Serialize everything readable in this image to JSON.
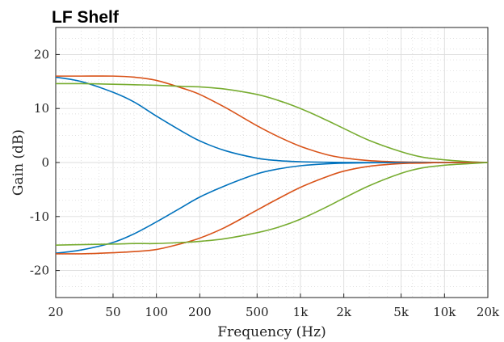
{
  "chart_data": {
    "type": "line",
    "title": "LF Shelf",
    "xlabel": "Frequency (Hz)",
    "ylabel": "Gain (dB)",
    "x_scale": "log",
    "xlim": [
      20,
      20000
    ],
    "ylim": [
      -25,
      25
    ],
    "grid": true,
    "minor_grid": true,
    "legend": "none",
    "x_ticks": [
      20,
      50,
      100,
      200,
      500,
      1000,
      2000,
      5000,
      10000,
      20000
    ],
    "x_tick_labels": [
      "20",
      "50",
      "100",
      "200",
      "500",
      "1k",
      "2k",
      "5k",
      "10k",
      "20k"
    ],
    "y_ticks": [
      -20,
      -10,
      0,
      10,
      20
    ],
    "y_tick_labels": [
      "-20",
      "-10",
      "0",
      "10",
      "20"
    ],
    "x": [
      20,
      30,
      50,
      70,
      100,
      150,
      200,
      300,
      500,
      700,
      1000,
      1500,
      2000,
      3000,
      5000,
      7000,
      10000,
      15000,
      20000
    ],
    "series": [
      {
        "color": "#0072BD",
        "values": [
          15.8,
          15.0,
          13.0,
          11.2,
          8.6,
          5.8,
          4.0,
          2.2,
          0.8,
          0.35,
          0.15,
          0.05,
          0.02,
          0.0,
          0.0,
          0.0,
          0.0,
          0.0,
          0.0
        ]
      },
      {
        "color": "#D95319",
        "values": [
          16.0,
          16.0,
          16.0,
          15.8,
          15.2,
          13.8,
          12.6,
          10.2,
          6.8,
          4.8,
          3.0,
          1.5,
          0.85,
          0.35,
          0.1,
          0.05,
          0.0,
          0.0,
          0.0
        ]
      },
      {
        "color": "#77AC30",
        "values": [
          14.6,
          14.6,
          14.5,
          14.4,
          14.3,
          14.1,
          14.0,
          13.6,
          12.6,
          11.5,
          10.0,
          7.9,
          6.3,
          4.1,
          2.0,
          1.0,
          0.5,
          0.15,
          0.0
        ]
      },
      {
        "color": "#0072BD",
        "values": [
          -16.8,
          -16.2,
          -14.8,
          -13.2,
          -11.0,
          -8.3,
          -6.4,
          -4.3,
          -2.1,
          -1.2,
          -0.6,
          -0.25,
          -0.12,
          -0.05,
          0.0,
          0.0,
          0.0,
          0.0,
          0.0
        ]
      },
      {
        "color": "#D95319",
        "values": [
          -16.9,
          -16.9,
          -16.7,
          -16.5,
          -16.1,
          -15.0,
          -14.0,
          -12.0,
          -8.8,
          -6.7,
          -4.6,
          -2.7,
          -1.6,
          -0.7,
          -0.2,
          -0.1,
          0.0,
          0.0,
          0.0
        ]
      },
      {
        "color": "#77AC30",
        "values": [
          -15.3,
          -15.2,
          -15.1,
          -15.0,
          -15.0,
          -14.8,
          -14.6,
          -14.1,
          -13.0,
          -12.0,
          -10.5,
          -8.3,
          -6.6,
          -4.3,
          -2.0,
          -1.0,
          -0.5,
          -0.2,
          0.0
        ]
      }
    ]
  }
}
